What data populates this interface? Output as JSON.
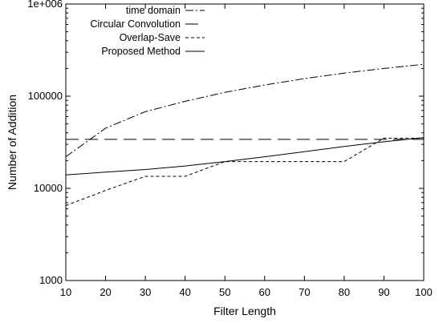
{
  "chart_data": {
    "type": "line",
    "title": "",
    "xlabel": "Filter Length",
    "ylabel": "Number of Addition",
    "xlim": [
      10,
      100
    ],
    "ylim": [
      1000,
      1000000
    ],
    "yscale": "log",
    "grid": false,
    "legend_position": "top-left",
    "x_ticks": [
      10,
      20,
      30,
      40,
      50,
      60,
      70,
      80,
      90,
      100
    ],
    "y_ticks": [
      {
        "value": 1000,
        "label": "1000"
      },
      {
        "value": 10000,
        "label": "10000"
      },
      {
        "value": 100000,
        "label": "100000"
      },
      {
        "value": 1000000,
        "label": "1e+006"
      }
    ],
    "series": [
      {
        "name": "time domain",
        "style": "dash-dot",
        "x": [
          10,
          20,
          30,
          40,
          50,
          60,
          70,
          80,
          90,
          100
        ],
        "y": [
          22000,
          45000,
          68000,
          88000,
          110000,
          132000,
          155000,
          178000,
          200000,
          222000
        ]
      },
      {
        "name": "Circular Convolution",
        "style": "long-dash",
        "x": [
          10,
          100
        ],
        "y": [
          34000,
          34000
        ]
      },
      {
        "name": "Overlap-Save",
        "style": "short-dash",
        "x": [
          10,
          20,
          30,
          40,
          50,
          60,
          70,
          80,
          90,
          100
        ],
        "y": [
          6500,
          9500,
          13500,
          13500,
          19500,
          19500,
          19500,
          19500,
          35000,
          35000
        ]
      },
      {
        "name": "Proposed Method",
        "style": "solid",
        "x": [
          10,
          20,
          30,
          40,
          50,
          60,
          70,
          80,
          90,
          100
        ],
        "y": [
          14000,
          15000,
          16000,
          17500,
          19500,
          22000,
          25000,
          28500,
          32000,
          35500
        ]
      }
    ]
  }
}
